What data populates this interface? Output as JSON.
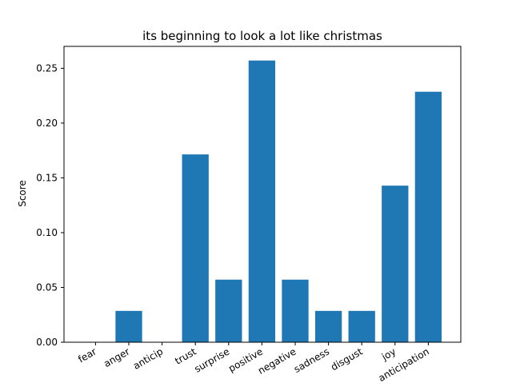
{
  "chart_data": {
    "type": "bar",
    "title": "its beginning to look a lot like christmas",
    "xlabel": "",
    "ylabel": "Score",
    "categories": [
      "fear",
      "anger",
      "anticip",
      "trust",
      "surprise",
      "positive",
      "negative",
      "sadness",
      "disgust",
      "joy",
      "anticipation"
    ],
    "values": [
      0.0,
      0.0286,
      0.0,
      0.1714,
      0.0571,
      0.2571,
      0.0571,
      0.0286,
      0.0286,
      0.1429,
      0.2286
    ],
    "ylim": [
      0,
      0.27
    ],
    "yticks": [
      "0.00",
      "0.05",
      "0.10",
      "0.15",
      "0.20",
      "0.25"
    ],
    "ytick_values": [
      0,
      0.05,
      0.1,
      0.15,
      0.2,
      0.25
    ],
    "bar_color": "#1f77b4",
    "grid": false,
    "legend": "none"
  }
}
